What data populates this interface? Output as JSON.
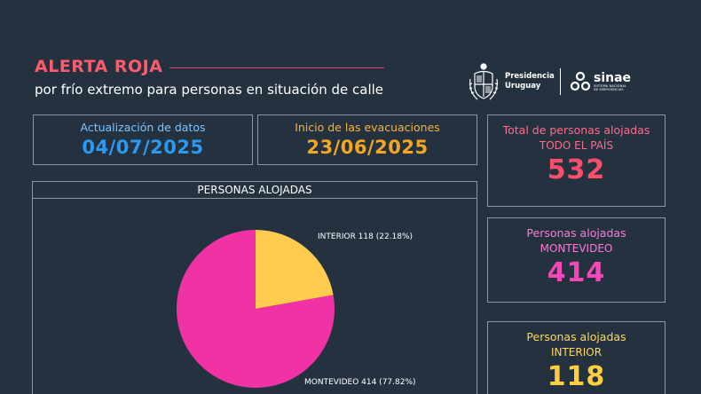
{
  "header": {
    "title": "ALERTA ROJA",
    "subtitle": "por frío extremo para personas en situación de calle"
  },
  "logos": {
    "presidencia_line1": "Presidencia",
    "presidencia_line2": "Uruguay",
    "sinae_name": "sinae",
    "sinae_sub_line1": "SISTEMA NACIONAL",
    "sinae_sub_line2": "DE EMERGENCIAS"
  },
  "dates": {
    "update_label": "Actualización de datos",
    "update_value": "04/07/2025",
    "start_label": "Inicio de las evacuaciones",
    "start_value": "23/06/2025"
  },
  "totals": {
    "total_label": "Total de personas alojadas",
    "total_sub": "TODO EL PAÍS",
    "total_value": "532",
    "mvd_label": "Personas alojadas",
    "mvd_sub": "MONTEVIDEO",
    "mvd_value": "414",
    "int_label": "Personas alojadas",
    "int_sub": "INTERIOR",
    "int_value": "118"
  },
  "chart_data": {
    "type": "pie",
    "title": "PERSONAS ALOJADAS",
    "slices": [
      {
        "label": "INTERIOR 118 (22.18%)",
        "value": 118,
        "percent": 22.18,
        "color": "#ffcc4d"
      },
      {
        "label": "MONTEVIDEO 414 (77.82%)",
        "value": 414,
        "percent": 77.82,
        "color": "#f032a4"
      }
    ]
  },
  "colors": {
    "background": "#243240",
    "alert_red": "#ff5a6e",
    "border": "#8a97a3"
  }
}
